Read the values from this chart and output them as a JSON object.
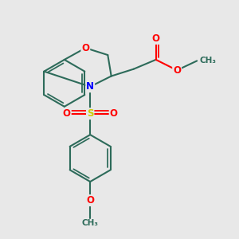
{
  "bg_color": "#e8e8e8",
  "bond_color": "#2d6b5a",
  "atom_colors": {
    "O": "#ff0000",
    "N": "#0000ff",
    "S": "#cccc00",
    "C": "#2d6b5a"
  },
  "line_width": 1.5,
  "fig_size": [
    3.0,
    3.0
  ],
  "dpi": 100
}
